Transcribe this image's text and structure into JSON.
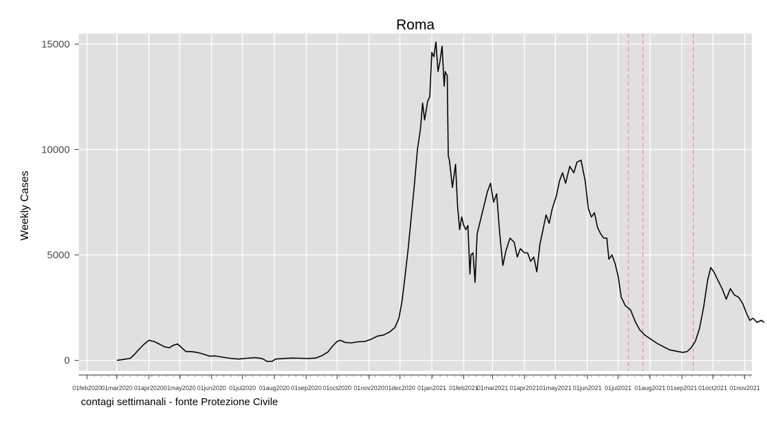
{
  "chart_data": {
    "type": "line",
    "title": "Roma",
    "ylabel": "Weekly Cases",
    "xlabel": "",
    "caption": "contagi settimanali - fonte Protezione Civile",
    "ylim": [
      -500,
      15500
    ],
    "xlim": [
      "2020-01-24",
      "2021-11-08"
    ],
    "yticks": [
      {
        "value": 0,
        "label": "0"
      },
      {
        "value": 5000,
        "label": "5000"
      },
      {
        "value": 10000,
        "label": "10000"
      },
      {
        "value": 15000,
        "label": "15000"
      }
    ],
    "xticks": [
      {
        "date": "2020-02-01",
        "label": "01feb2020"
      },
      {
        "date": "2020-03-01",
        "label": "01mar2020"
      },
      {
        "date": "2020-04-01",
        "label": "01apr2020"
      },
      {
        "date": "2020-05-01",
        "label": "01may2020"
      },
      {
        "date": "2020-06-01",
        "label": "01jun2020"
      },
      {
        "date": "2020-07-01",
        "label": "01jul2020"
      },
      {
        "date": "2020-08-01",
        "label": "01aug2020"
      },
      {
        "date": "2020-09-01",
        "label": "01sep2020"
      },
      {
        "date": "2020-10-01",
        "label": "01oct2020"
      },
      {
        "date": "2020-11-01",
        "label": "01nov2020"
      },
      {
        "date": "2020-12-01",
        "label": "01dec2020"
      },
      {
        "date": "2021-01-01",
        "label": "01jan2021"
      },
      {
        "date": "2021-02-01",
        "label": "01feb2021"
      },
      {
        "date": "2021-03-01",
        "label": "01mar2021"
      },
      {
        "date": "2021-04-01",
        "label": "01apr2021"
      },
      {
        "date": "2021-05-01",
        "label": "01may2021"
      },
      {
        "date": "2021-06-01",
        "label": "01jun2021"
      },
      {
        "date": "2021-07-01",
        "label": "01jul2021"
      },
      {
        "date": "2021-08-01",
        "label": "01aug2021"
      },
      {
        "date": "2021-09-01",
        "label": "01sep2021"
      },
      {
        "date": "2021-10-01",
        "label": "01oct2021"
      },
      {
        "date": "2021-11-01",
        "label": "01nov2021"
      }
    ],
    "vlines": [
      "2021-07-11",
      "2021-07-25",
      "2021-09-12"
    ],
    "grid": true,
    "colors": {
      "panel": "#e0e0e0",
      "grid": "#ffffff",
      "line": "#000000",
      "vline": "#f08070"
    },
    "series": [
      {
        "values": [
          [
            "2020-03-01",
            0
          ],
          [
            "2020-03-08",
            50
          ],
          [
            "2020-03-14",
            100
          ],
          [
            "2020-03-18",
            280
          ],
          [
            "2020-03-22",
            500
          ],
          [
            "2020-03-27",
            750
          ],
          [
            "2020-04-01",
            950
          ],
          [
            "2020-04-06",
            900
          ],
          [
            "2020-04-11",
            780
          ],
          [
            "2020-04-16",
            650
          ],
          [
            "2020-04-21",
            600
          ],
          [
            "2020-04-25",
            720
          ],
          [
            "2020-04-29",
            780
          ],
          [
            "2020-05-03",
            600
          ],
          [
            "2020-05-07",
            420
          ],
          [
            "2020-05-12",
            420
          ],
          [
            "2020-05-18",
            380
          ],
          [
            "2020-05-24",
            300
          ],
          [
            "2020-05-30",
            200
          ],
          [
            "2020-06-05",
            210
          ],
          [
            "2020-06-12",
            150
          ],
          [
            "2020-06-19",
            100
          ],
          [
            "2020-06-27",
            60
          ],
          [
            "2020-07-05",
            100
          ],
          [
            "2020-07-13",
            130
          ],
          [
            "2020-07-20",
            90
          ],
          [
            "2020-07-25",
            -50
          ],
          [
            "2020-07-30",
            -40
          ],
          [
            "2020-08-02",
            60
          ],
          [
            "2020-08-10",
            90
          ],
          [
            "2020-08-18",
            110
          ],
          [
            "2020-08-26",
            100
          ],
          [
            "2020-09-03",
            90
          ],
          [
            "2020-09-10",
            110
          ],
          [
            "2020-09-16",
            220
          ],
          [
            "2020-09-22",
            400
          ],
          [
            "2020-09-27",
            700
          ],
          [
            "2020-10-01",
            900
          ],
          [
            "2020-10-04",
            950
          ],
          [
            "2020-10-09",
            850
          ],
          [
            "2020-10-15",
            830
          ],
          [
            "2020-10-21",
            880
          ],
          [
            "2020-10-28",
            900
          ],
          [
            "2020-11-03",
            1000
          ],
          [
            "2020-11-09",
            1150
          ],
          [
            "2020-11-15",
            1200
          ],
          [
            "2020-11-21",
            1350
          ],
          [
            "2020-11-26",
            1550
          ],
          [
            "2020-11-30",
            2000
          ],
          [
            "2020-12-03",
            2800
          ],
          [
            "2020-12-06",
            4000
          ],
          [
            "2020-12-09",
            5300
          ],
          [
            "2020-12-12",
            6800
          ],
          [
            "2020-12-15",
            8300
          ],
          [
            "2020-12-18",
            10000
          ],
          [
            "2020-12-21",
            11000
          ],
          [
            "2020-12-23",
            12200
          ],
          [
            "2020-12-25",
            11400
          ],
          [
            "2020-12-28",
            12300
          ],
          [
            "2020-12-30",
            12500
          ],
          [
            "2021-01-01",
            14600
          ],
          [
            "2021-01-03",
            14400
          ],
          [
            "2021-01-05",
            15100
          ],
          [
            "2021-01-07",
            13700
          ],
          [
            "2021-01-09",
            14200
          ],
          [
            "2021-01-11",
            14900
          ],
          [
            "2021-01-13",
            13000
          ],
          [
            "2021-01-14",
            13700
          ],
          [
            "2021-01-16",
            13500
          ],
          [
            "2021-01-17",
            9700
          ],
          [
            "2021-01-18",
            9500
          ],
          [
            "2021-01-21",
            8200
          ],
          [
            "2021-01-24",
            9300
          ],
          [
            "2021-01-26",
            7300
          ],
          [
            "2021-01-28",
            6200
          ],
          [
            "2021-01-30",
            6800
          ],
          [
            "2021-02-01",
            6400
          ],
          [
            "2021-02-03",
            6200
          ],
          [
            "2021-02-05",
            6400
          ],
          [
            "2021-02-07",
            4100
          ],
          [
            "2021-02-08",
            5000
          ],
          [
            "2021-02-10",
            5100
          ],
          [
            "2021-02-12",
            3700
          ],
          [
            "2021-02-14",
            6000
          ],
          [
            "2021-02-17",
            6600
          ],
          [
            "2021-02-20",
            7200
          ],
          [
            "2021-02-24",
            8000
          ],
          [
            "2021-02-27",
            8400
          ],
          [
            "2021-03-02",
            7500
          ],
          [
            "2021-03-05",
            7900
          ],
          [
            "2021-03-08",
            6000
          ],
          [
            "2021-03-11",
            4500
          ],
          [
            "2021-03-14",
            5200
          ],
          [
            "2021-03-18",
            5800
          ],
          [
            "2021-03-22",
            5600
          ],
          [
            "2021-03-25",
            4900
          ],
          [
            "2021-03-28",
            5300
          ],
          [
            "2021-04-01",
            5100
          ],
          [
            "2021-04-04",
            5100
          ],
          [
            "2021-04-07",
            4700
          ],
          [
            "2021-04-10",
            4900
          ],
          [
            "2021-04-13",
            4200
          ],
          [
            "2021-04-16",
            5500
          ],
          [
            "2021-04-19",
            6200
          ],
          [
            "2021-04-22",
            6900
          ],
          [
            "2021-04-25",
            6500
          ],
          [
            "2021-04-28",
            7200
          ],
          [
            "2021-05-02",
            7800
          ],
          [
            "2021-05-05",
            8500
          ],
          [
            "2021-05-08",
            8900
          ],
          [
            "2021-05-11",
            8400
          ],
          [
            "2021-05-15",
            9200
          ],
          [
            "2021-05-19",
            8900
          ],
          [
            "2021-05-22",
            9400
          ],
          [
            "2021-05-26",
            9500
          ],
          [
            "2021-05-30",
            8500
          ],
          [
            "2021-06-02",
            7200
          ],
          [
            "2021-06-05",
            6800
          ],
          [
            "2021-06-08",
            7000
          ],
          [
            "2021-06-11",
            6300
          ],
          [
            "2021-06-14",
            6000
          ],
          [
            "2021-06-17",
            5800
          ],
          [
            "2021-06-20",
            5800
          ],
          [
            "2021-06-22",
            4800
          ],
          [
            "2021-06-25",
            5000
          ],
          [
            "2021-06-28",
            4600
          ],
          [
            "2021-07-01",
            4000
          ],
          [
            "2021-07-04",
            3000
          ],
          [
            "2021-07-08",
            2600
          ],
          [
            "2021-07-13",
            2400
          ],
          [
            "2021-07-18",
            1800
          ],
          [
            "2021-07-22",
            1450
          ],
          [
            "2021-07-27",
            1200
          ],
          [
            "2021-08-02",
            1000
          ],
          [
            "2021-08-08",
            800
          ],
          [
            "2021-08-14",
            650
          ],
          [
            "2021-08-20",
            500
          ],
          [
            "2021-08-27",
            430
          ],
          [
            "2021-09-02",
            380
          ],
          [
            "2021-09-06",
            420
          ],
          [
            "2021-09-10",
            600
          ],
          [
            "2021-09-14",
            900
          ],
          [
            "2021-09-18",
            1500
          ],
          [
            "2021-09-22",
            2500
          ],
          [
            "2021-09-26",
            3800
          ],
          [
            "2021-09-29",
            4400
          ],
          [
            "2021-10-02",
            4200
          ],
          [
            "2021-10-06",
            3800
          ],
          [
            "2021-10-10",
            3400
          ],
          [
            "2021-10-14",
            2900
          ],
          [
            "2021-10-18",
            3400
          ],
          [
            "2021-10-22",
            3100
          ],
          [
            "2021-10-26",
            3000
          ],
          [
            "2021-10-30",
            2700
          ],
          [
            "2021-11-03",
            2200
          ],
          [
            "2021-11-06",
            1900
          ],
          [
            "2021-11-09",
            2000
          ],
          [
            "2021-11-13",
            1800
          ],
          [
            "2021-11-17",
            1900
          ],
          [
            "2021-11-20",
            1800
          ]
        ]
      }
    ]
  }
}
